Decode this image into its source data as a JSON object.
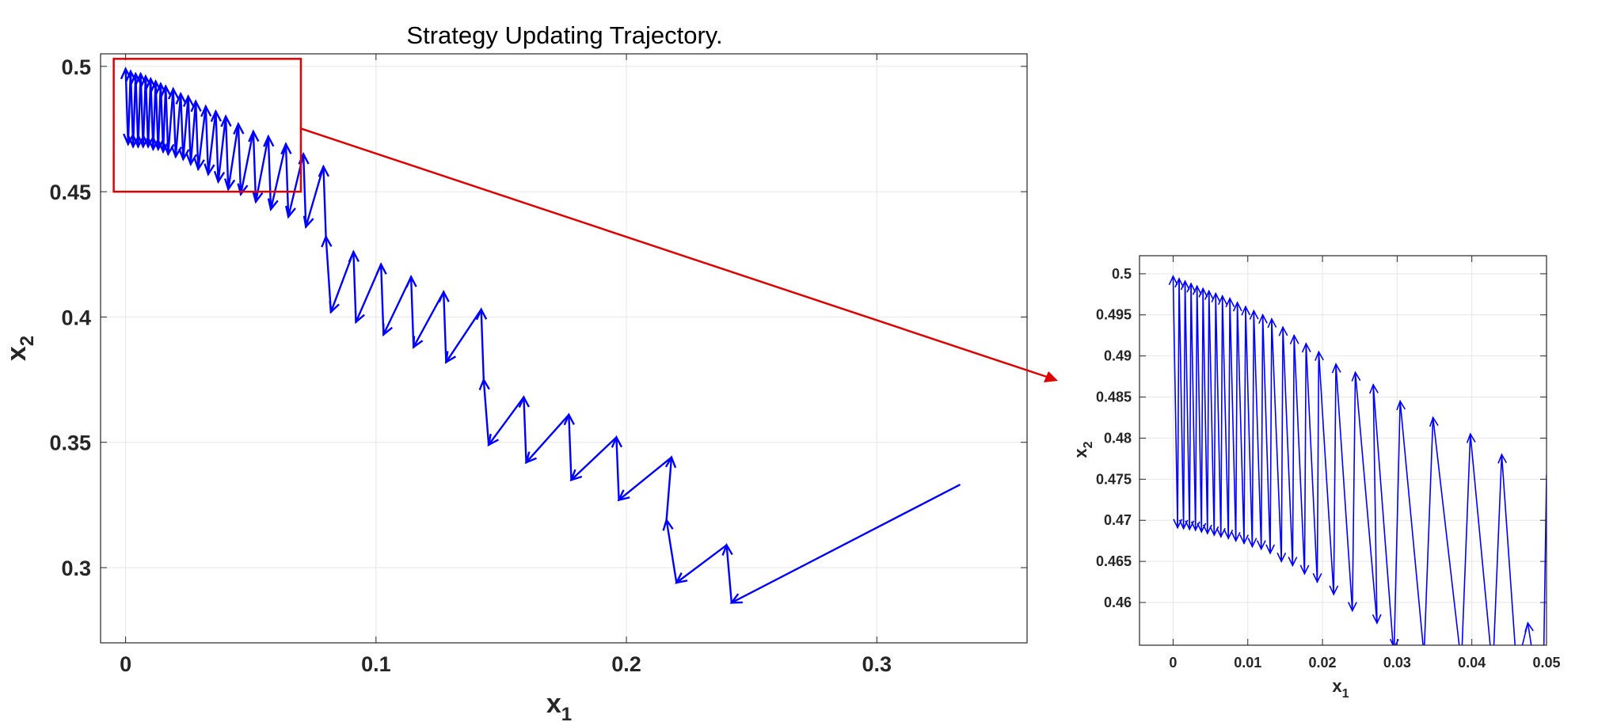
{
  "chart_data": [
    {
      "type": "line",
      "title": "Strategy Updating Trajectory.",
      "xlabel": "x",
      "xlabel_sub": "1",
      "ylabel": "x",
      "ylabel_sub": "2",
      "xlim": [
        -0.01,
        0.36
      ],
      "ylim": [
        0.27,
        0.505
      ],
      "xticks": [
        "0",
        "0.1",
        "0.2",
        "0.3"
      ],
      "xtick_values": [
        0,
        0.1,
        0.2,
        0.3
      ],
      "yticks": [
        "0.3",
        "0.35",
        "0.4",
        "0.45",
        "0.5"
      ],
      "ytick_values": [
        0.3,
        0.35,
        0.4,
        0.45,
        0.5
      ],
      "grid": true,
      "color": "#0000ff",
      "highlight_box": {
        "x": [
          0,
          0.07
        ],
        "y": [
          0.45,
          0.503
        ],
        "color": "#e00000"
      },
      "series": [
        {
          "points": [
            [
              0.333,
              0.333
            ],
            [
              0.242,
              0.286
            ],
            [
              0.24,
              0.309
            ],
            [
              0.22,
              0.294
            ],
            [
              0.216,
              0.319
            ],
            [
              0.218,
              0.344
            ],
            [
              0.197,
              0.327
            ],
            [
              0.196,
              0.352
            ],
            [
              0.178,
              0.335
            ],
            [
              0.177,
              0.361
            ],
            [
              0.16,
              0.342
            ],
            [
              0.159,
              0.368
            ],
            [
              0.145,
              0.349
            ],
            [
              0.143,
              0.375
            ],
            [
              0.142,
              0.403
            ],
            [
              0.128,
              0.382
            ],
            [
              0.127,
              0.41
            ],
            [
              0.115,
              0.388
            ],
            [
              0.114,
              0.416
            ],
            [
              0.103,
              0.393
            ],
            [
              0.102,
              0.421
            ],
            [
              0.092,
              0.398
            ],
            [
              0.091,
              0.426
            ],
            [
              0.082,
              0.402
            ],
            [
              0.08,
              0.432
            ],
            [
              0.079,
              0.46
            ],
            [
              0.072,
              0.436
            ],
            [
              0.071,
              0.465
            ],
            [
              0.065,
              0.44
            ],
            [
              0.064,
              0.469
            ],
            [
              0.058,
              0.443
            ],
            [
              0.057,
              0.472
            ],
            [
              0.052,
              0.446
            ],
            [
              0.051,
              0.474
            ],
            [
              0.046,
              0.449
            ],
            [
              0.045,
              0.477
            ],
            [
              0.041,
              0.451
            ],
            [
              0.04,
              0.48
            ],
            [
              0.037,
              0.454
            ],
            [
              0.036,
              0.482
            ],
            [
              0.033,
              0.457
            ],
            [
              0.032,
              0.484
            ],
            [
              0.029,
              0.459
            ],
            [
              0.028,
              0.486
            ],
            [
              0.026,
              0.461
            ],
            [
              0.025,
              0.488
            ],
            [
              0.023,
              0.463
            ],
            [
              0.022,
              0.489
            ],
            [
              0.02,
              0.464
            ],
            [
              0.019,
              0.491
            ],
            [
              0.017,
              0.465
            ],
            [
              0.016,
              0.492
            ],
            [
              0.015,
              0.466
            ],
            [
              0.014,
              0.493
            ],
            [
              0.013,
              0.467
            ],
            [
              0.012,
              0.494
            ],
            [
              0.011,
              0.467
            ],
            [
              0.01,
              0.495
            ],
            [
              0.009,
              0.468
            ],
            [
              0.008,
              0.496
            ],
            [
              0.007,
              0.468
            ],
            [
              0.006,
              0.497
            ],
            [
              0.005,
              0.468
            ],
            [
              0.004,
              0.497
            ],
            [
              0.003,
              0.468
            ],
            [
              0.002,
              0.498
            ],
            [
              0.001,
              0.469
            ],
            [
              0.0,
              0.499
            ]
          ]
        }
      ]
    },
    {
      "type": "line",
      "title": "",
      "xlabel": "x",
      "xlabel_sub": "1",
      "ylabel": "x",
      "ylabel_sub": "2",
      "xlim": [
        -0.0045,
        0.05
      ],
      "ylim": [
        0.4548,
        0.5022
      ],
      "xticks": [
        "0",
        "0.01",
        "0.02",
        "0.03",
        "0.04",
        "0.05"
      ],
      "xtick_values": [
        0,
        0.01,
        0.02,
        0.03,
        0.04,
        0.05
      ],
      "yticks": [
        "0.46",
        "0.465",
        "0.47",
        "0.475",
        "0.48",
        "0.485",
        "0.49",
        "0.495",
        "0.5"
      ],
      "ytick_values": [
        0.46,
        0.465,
        0.47,
        0.475,
        0.48,
        0.485,
        0.49,
        0.495,
        0.5
      ],
      "grid": true,
      "color": "#0000ff",
      "series": [
        {
          "points": [
            [
              0.05,
              0.4755
            ],
            [
              0.0496,
              0.452
            ],
            [
              0.0486,
              0.451
            ],
            [
              0.0475,
              0.4575
            ],
            [
              0.046,
              0.452
            ],
            [
              0.044,
              0.478
            ],
            [
              0.0428,
              0.4515
            ],
            [
              0.0398,
              0.4805
            ],
            [
              0.0386,
              0.4525
            ],
            [
              0.0348,
              0.4825
            ],
            [
              0.0336,
              0.4535
            ],
            [
              0.0304,
              0.4845
            ],
            [
              0.0296,
              0.4545
            ],
            [
              0.0296,
              0.453
            ],
            [
              0.0268,
              0.4865
            ],
            [
              0.0273,
              0.4575
            ],
            [
              0.0244,
              0.488
            ],
            [
              0.024,
              0.459
            ],
            [
              0.0218,
              0.489
            ],
            [
              0.0215,
              0.461
            ],
            [
              0.0195,
              0.4905
            ],
            [
              0.0193,
              0.4625
            ],
            [
              0.0178,
              0.4915
            ],
            [
              0.0176,
              0.4635
            ],
            [
              0.0162,
              0.4925
            ],
            [
              0.016,
              0.4645
            ],
            [
              0.0147,
              0.4935
            ],
            [
              0.0145,
              0.465
            ],
            [
              0.0132,
              0.4945
            ],
            [
              0.013,
              0.466
            ],
            [
              0.012,
              0.495
            ],
            [
              0.0118,
              0.4665
            ],
            [
              0.0108,
              0.4955
            ],
            [
              0.0106,
              0.4668
            ],
            [
              0.0097,
              0.496
            ],
            [
              0.0095,
              0.4672
            ],
            [
              0.0086,
              0.4965
            ],
            [
              0.0084,
              0.4675
            ],
            [
              0.0076,
              0.497
            ],
            [
              0.0074,
              0.4678
            ],
            [
              0.0066,
              0.4973
            ],
            [
              0.0064,
              0.468
            ],
            [
              0.0057,
              0.4976
            ],
            [
              0.0055,
              0.4682
            ],
            [
              0.0048,
              0.4979
            ],
            [
              0.0046,
              0.4684
            ],
            [
              0.004,
              0.4982
            ],
            [
              0.0038,
              0.4686
            ],
            [
              0.0032,
              0.4985
            ],
            [
              0.003,
              0.4688
            ],
            [
              0.0024,
              0.4988
            ],
            [
              0.0022,
              0.4689
            ],
            [
              0.0016,
              0.4991
            ],
            [
              0.0014,
              0.469
            ],
            [
              0.0008,
              0.4994
            ],
            [
              0.0006,
              0.4691
            ],
            [
              0.0,
              0.4997
            ]
          ]
        }
      ]
    }
  ]
}
